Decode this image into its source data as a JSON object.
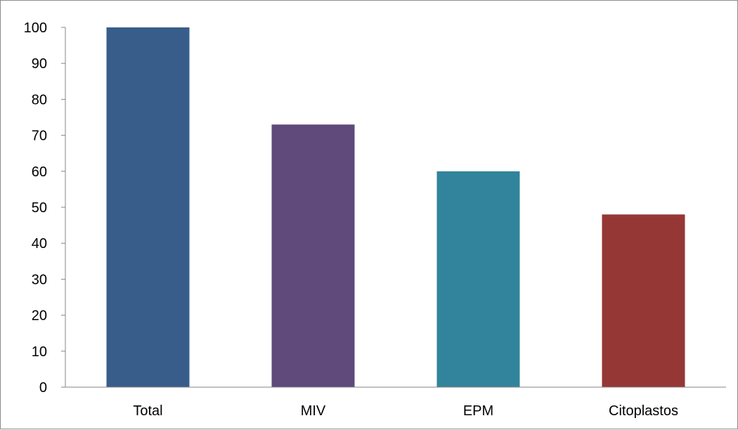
{
  "chart_data": {
    "type": "bar",
    "categories": [
      "Total",
      "MIV",
      "EPM",
      "Citoplastos"
    ],
    "values": [
      100,
      73,
      60,
      48
    ],
    "colors": [
      "#385D8A",
      "#5F4A7B",
      "#31849B",
      "#953735"
    ],
    "ylim": [
      0,
      100
    ],
    "yticks": [
      "0",
      "10",
      "20",
      "30",
      "40",
      "50",
      "60",
      "70",
      "80",
      "90",
      "100"
    ],
    "grid": false,
    "legend": "none"
  }
}
